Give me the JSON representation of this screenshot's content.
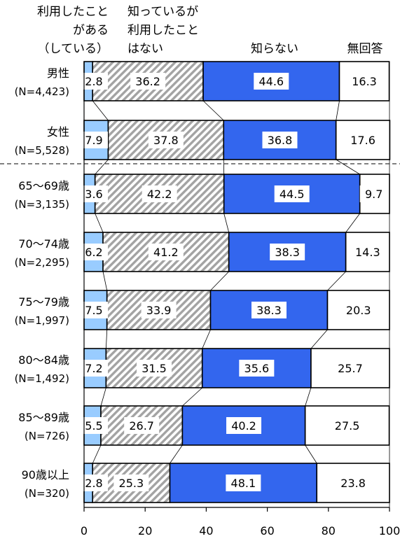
{
  "chart_data": {
    "type": "bar",
    "stacked": true,
    "orientation": "horizontal",
    "percent_scale": true,
    "legend_placement": "top",
    "grid": false,
    "xlim": [
      0,
      100
    ],
    "x_ticks": [
      "0",
      "20",
      "40",
      "60",
      "80",
      "100"
    ],
    "categories": [
      {
        "line1": "男性",
        "line2": "(N=4,423)"
      },
      {
        "line1": "女性",
        "line2": "(N=5,528)"
      },
      {
        "line1": "65～69歳",
        "line2": "(N=3,135)"
      },
      {
        "line1": "70～74歳",
        "line2": "(N=2,295)"
      },
      {
        "line1": "75～79歳",
        "line2": "(N=1,997)"
      },
      {
        "line1": "80～84歳",
        "line2": "(N=1,492)"
      },
      {
        "line1": "85～89歳",
        "line2": "(N=726)"
      },
      {
        "line1": "90歳以上",
        "line2": "(N=320)"
      }
    ],
    "series": [
      {
        "name_lines": [
          "利用したこと",
          "がある",
          "（している）"
        ],
        "color": "#99ccff",
        "values": [
          2.8,
          7.9,
          3.6,
          6.2,
          7.5,
          7.2,
          5.5,
          2.8
        ],
        "labels": [
          "2.8",
          "7.9",
          "3.6",
          "6.2",
          "7.5",
          "7.2",
          "5.5",
          "2.8"
        ]
      },
      {
        "name_lines": [
          "知っているが",
          "利用したこと",
          "はない"
        ],
        "color": "#999999",
        "pattern": "hatched",
        "values": [
          36.2,
          37.8,
          42.2,
          41.2,
          33.9,
          31.5,
          26.7,
          25.3
        ],
        "labels": [
          "36.2",
          "37.8",
          "42.2",
          "41.2",
          "33.9",
          "31.5",
          "26.7",
          "25.3"
        ]
      },
      {
        "name_lines": [
          "知らない"
        ],
        "color": "#3366ee",
        "values": [
          44.6,
          36.8,
          44.5,
          38.3,
          38.3,
          35.6,
          40.2,
          48.1
        ],
        "labels": [
          "44.6",
          "36.8",
          "44.5",
          "38.3",
          "38.3",
          "35.6",
          "40.2",
          "48.1"
        ]
      },
      {
        "name_lines": [
          "無回答"
        ],
        "color": "#ffffff",
        "values": [
          16.3,
          17.6,
          9.7,
          14.3,
          20.3,
          25.7,
          27.5,
          23.8
        ],
        "labels": [
          "16.3",
          "17.6",
          "9.7",
          "14.3",
          "20.3",
          "25.7",
          "27.5",
          "23.8"
        ]
      }
    ]
  }
}
